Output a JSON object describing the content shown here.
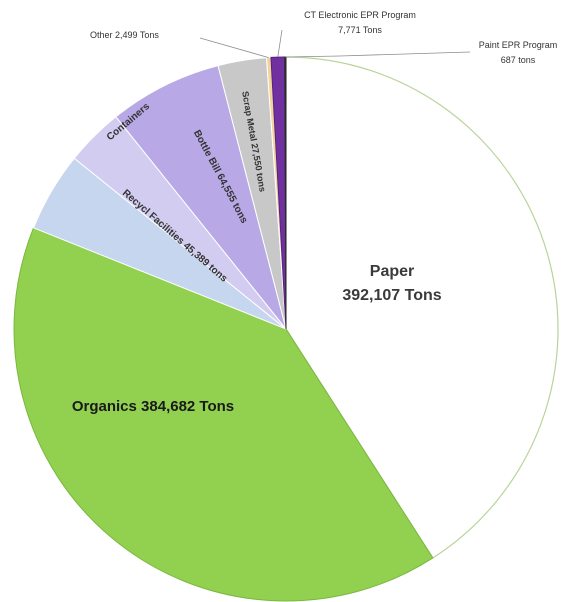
{
  "chart_data": {
    "type": "pie",
    "title": "",
    "unit": "tons",
    "slices": [
      {
        "label": "Paper",
        "value": 392107,
        "text": "392,107 Tons",
        "color": "#ffffff",
        "stroke": "#b8d49a"
      },
      {
        "label": "Organics",
        "value": 384682,
        "text": "Organics 384,682 Tons",
        "color": "#92d050",
        "stroke": "#7ab83f"
      },
      {
        "label": "Recycl Facilities",
        "value": 45389,
        "text": "Recycl Facilities 45,389 tons",
        "color": "#c5d6ee",
        "stroke": "#ffffff"
      },
      {
        "label": "Containers",
        "value": 33000,
        "text": "Containers",
        "color": "#d2ccf0",
        "stroke": "#ffffff"
      },
      {
        "label": "Bottle Bill",
        "value": 64555,
        "text": "Bottle Bill 64,555 tons",
        "color": "#b8a8e6",
        "stroke": "#ffffff"
      },
      {
        "label": "Scrap Metal",
        "value": 27550,
        "text": "Scrap Metal 27,550 tons",
        "color": "#c8c8c8",
        "stroke": "#ffffff"
      },
      {
        "label": "Other",
        "value": 2499,
        "text": "Other 2,499 Tons",
        "color": "#f2d39a",
        "stroke": "#ffffff"
      },
      {
        "label": "CT Electronic EPR Program",
        "value": 7771,
        "text": "7,771 Tons",
        "color": "#7030a0",
        "stroke": "#5a2080"
      },
      {
        "label": "Paint EPR Program",
        "value": 687,
        "text": "687 tons",
        "color": "#2b2b2b",
        "stroke": "#2b2b2b"
      }
    ]
  }
}
